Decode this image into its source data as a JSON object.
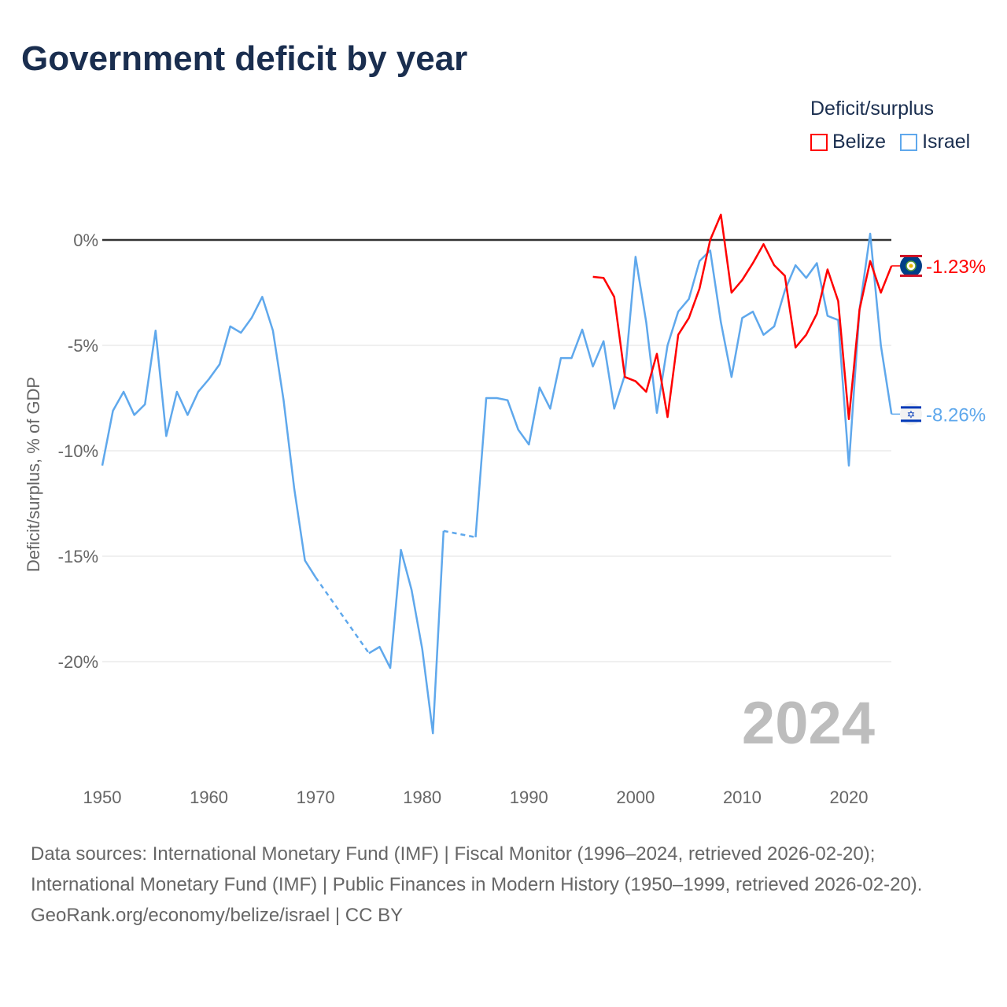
{
  "title": "Government deficit by year",
  "legend": {
    "title": "Deficit/surplus",
    "items": [
      {
        "name": "Belize",
        "color": "#ff0000"
      },
      {
        "name": "Israel",
        "color": "#5fa8ec"
      }
    ]
  },
  "year_label": "2024",
  "footer": {
    "sources": "Data sources: International Monetary Fund (IMF) | Fiscal Monitor (1996–2024, retrieved 2026-02-20); International Monetary Fund (IMF) | Public Finances in Modern History (1950–1999, retrieved 2026-02-20).",
    "credit": "GeoRank.org/economy/belize/israel | CC BY"
  },
  "chart_data": {
    "type": "line",
    "title": "Government deficit by year",
    "xlabel": "",
    "ylabel": "Deficit/surplus, % of GDP",
    "xlim": [
      1950,
      2024
    ],
    "ylim": [
      -25,
      2
    ],
    "x_ticks": [
      1950,
      1960,
      1970,
      1980,
      1990,
      2000,
      2010,
      2020
    ],
    "x_tick_labels": [
      "1950",
      "1960",
      "1970",
      "1980",
      "1990",
      "2000",
      "2010",
      "2020"
    ],
    "y_ticks": [
      0,
      -5,
      -10,
      -15,
      -20
    ],
    "y_tick_labels": [
      "0%",
      "-5%",
      "-10%",
      "-15%",
      "-20%"
    ],
    "grid": true,
    "legend_position": "top-right",
    "series": [
      {
        "name": "Belize",
        "color": "#ff0000",
        "end_label": "-1.23%",
        "start": 1996,
        "values": [
          -1.75,
          -1.8,
          -2.7,
          -6.5,
          -6.7,
          -7.2,
          -5.4,
          -8.4,
          -4.5,
          -3.7,
          -2.3,
          0.0,
          1.2,
          -2.5,
          -1.9,
          -1.1,
          -0.2,
          -1.2,
          -1.7,
          -5.1,
          -4.5,
          -3.5,
          -1.4,
          -2.9,
          -8.5,
          -3.3,
          -1.0,
          -2.5,
          -1.23
        ]
      },
      {
        "name": "Israel",
        "color": "#5fa8ec",
        "end_label": "-8.26%",
        "start": 1950,
        "values": [
          -10.7,
          -8.1,
          -7.2,
          -8.3,
          -7.8,
          -4.3,
          -9.3,
          -7.2,
          -8.3,
          -7.2,
          -6.6,
          -5.9,
          -4.1,
          -4.4,
          -3.7,
          -2.7,
          -4.3,
          -7.6,
          -11.8,
          -15.2,
          -16.0,
          null,
          null,
          null,
          null,
          -19.6,
          -19.3,
          -20.3,
          -14.7,
          -16.6,
          -19.4,
          -23.4,
          -13.8,
          null,
          null,
          -14.1,
          -7.5,
          -7.5,
          -7.6,
          -9.0,
          -9.7,
          -7.0,
          -8.0,
          -5.6,
          -5.6,
          -4.25,
          -6.0,
          -4.8,
          -8.0,
          -6.4,
          -0.8,
          -3.9,
          -8.2,
          -5.0,
          -3.4,
          -2.8,
          -1.0,
          -0.5,
          -3.9,
          -6.5,
          -3.7,
          -3.4,
          -4.5,
          -4.1,
          -2.4,
          -1.2,
          -1.8,
          -1.1,
          -3.6,
          -3.8,
          -10.7,
          -3.3,
          0.3,
          -5.0,
          -8.26
        ]
      }
    ]
  }
}
